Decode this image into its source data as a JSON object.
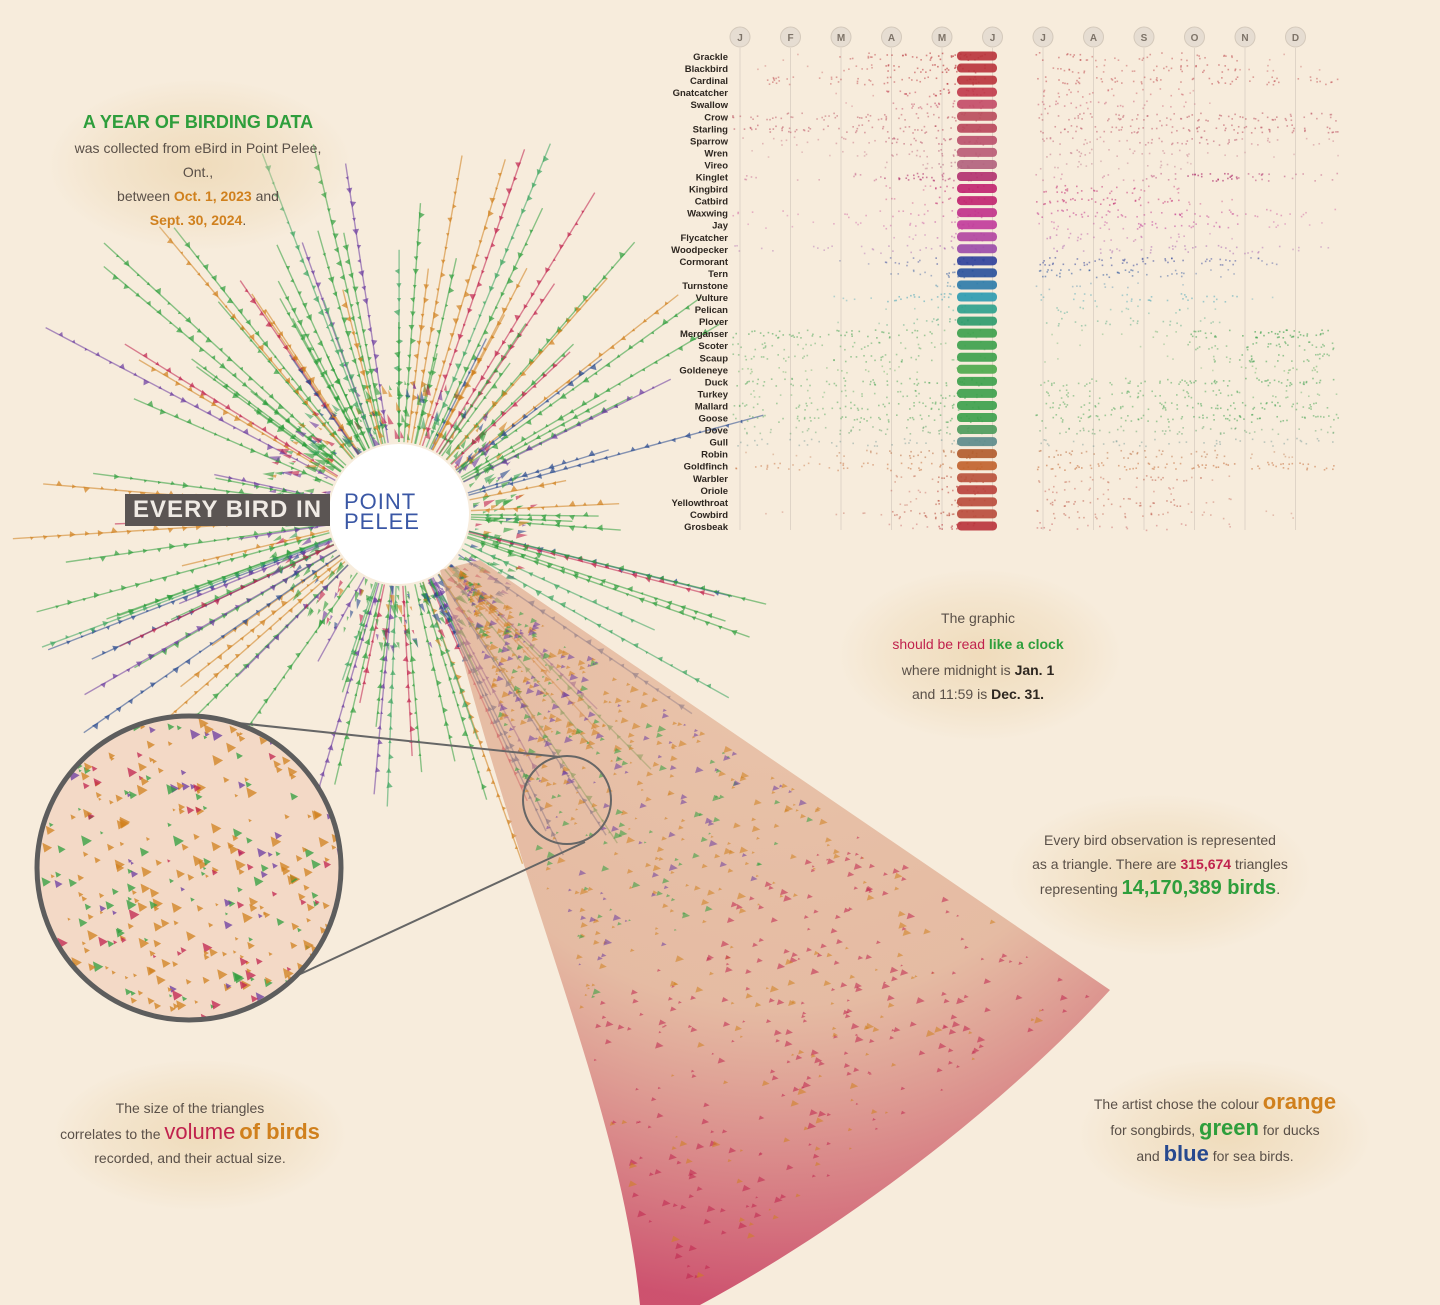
{
  "intro": {
    "heading": "A YEAR OF BIRDING DATA",
    "line1": "was collected from eBird in Point Pelee, Ont.,",
    "line2_pre": "between ",
    "date_start": "Oct. 1, 2023",
    "line2_post": " and",
    "date_end": "Sept. 30, 2024",
    "period": "."
  },
  "title": {
    "banner": "EVERY BIRD IN",
    "place_line1": "POINT",
    "place_line2": "PELEE"
  },
  "clock_note": {
    "line1": "The graphic",
    "emph1": "should be read",
    "emph2": "like a clock",
    "line3_pre": "where midnight is ",
    "jan": "Jan. 1",
    "line4_pre": "and 11:59 is ",
    "dec": "Dec. 31."
  },
  "triangle_note": {
    "line1": "Every bird observation is represented",
    "line2_pre": "as a triangle. There are ",
    "triangles": "315,674",
    "line2_post": " triangles",
    "line3_pre": "representing ",
    "birds": "14,170,389 birds",
    "period": "."
  },
  "size_note": {
    "line1": "The size of the triangles",
    "line2_pre": "correlates to the ",
    "volume": "volume",
    "of_birds": "of birds",
    "line3": "recorded, and their actual size."
  },
  "colour_note": {
    "line1_pre": "The artist chose the colour ",
    "orange": "orange",
    "line2_pre": "for songbirds, ",
    "green": "green",
    "line2_post": " for ducks",
    "line3_pre": "and ",
    "blue": "blue",
    "line3_post": " for sea birds."
  },
  "colors": {
    "background": "#f7ecdc",
    "songbird_orange": "#d0801d",
    "duck_green": "#2e9e3c",
    "seabird_blue": "#27498f",
    "crimson": "#c0224d"
  },
  "chart_data": [
    {
      "type": "heatmap",
      "title": "",
      "x_ticks": [
        "J",
        "F",
        "M",
        "A",
        "M",
        "J",
        "J",
        "A",
        "S",
        "O",
        "N",
        "D"
      ],
      "species": [
        {
          "name": "Grackle",
          "color": "#b8323a",
          "months": [
            0,
            0.1,
            0.4,
            0.6,
            0.8,
            1,
            0.5,
            0.3,
            0.4,
            0.4,
            0.1,
            0
          ]
        },
        {
          "name": "Blackbird",
          "color": "#b8323a",
          "months": [
            0.1,
            0.1,
            0.3,
            0.6,
            0.8,
            1,
            0.4,
            0.3,
            0.4,
            0.5,
            0.2,
            0.1
          ]
        },
        {
          "name": "Cardinal",
          "color": "#b8323a",
          "months": [
            0.4,
            0.3,
            0.4,
            0.5,
            0.7,
            1,
            0.5,
            0.4,
            0.4,
            0.5,
            0.4,
            0.4
          ]
        },
        {
          "name": "Gnatcatcher",
          "color": "#c0394a",
          "months": [
            0,
            0,
            0.1,
            0.5,
            0.8,
            1,
            0.4,
            0.3,
            0.3,
            0.1,
            0,
            0
          ]
        },
        {
          "name": "Swallow",
          "color": "#c24a66",
          "months": [
            0,
            0,
            0.1,
            0.5,
            0.7,
            1,
            0.5,
            0.4,
            0.3,
            0.1,
            0,
            0
          ]
        },
        {
          "name": "Crow",
          "color": "#b84a5a",
          "months": [
            0.5,
            0.4,
            0.5,
            0.5,
            0.6,
            1,
            0.5,
            0.5,
            0.5,
            0.6,
            0.6,
            0.5
          ]
        },
        {
          "name": "Starling",
          "color": "#b8465a",
          "months": [
            0.6,
            0.5,
            0.5,
            0.5,
            0.6,
            1,
            0.5,
            0.5,
            0.5,
            0.6,
            0.6,
            0.6
          ]
        },
        {
          "name": "Sparrow",
          "color": "#b9506a",
          "months": [
            0.2,
            0.2,
            0.3,
            0.6,
            0.7,
            1,
            0.4,
            0.3,
            0.5,
            0.6,
            0.3,
            0.2
          ]
        },
        {
          "name": "Wren",
          "color": "#b85a74",
          "months": [
            0.1,
            0.1,
            0.2,
            0.4,
            0.6,
            1,
            0.4,
            0.3,
            0.3,
            0.2,
            0.1,
            0.1
          ]
        },
        {
          "name": "Vireo",
          "color": "#b0607c",
          "months": [
            0,
            0,
            0,
            0.3,
            0.6,
            1,
            0.3,
            0.2,
            0.3,
            0.1,
            0,
            0
          ]
        },
        {
          "name": "Kinglet",
          "color": "#b0306e",
          "months": [
            0.2,
            0.1,
            0.3,
            0.8,
            0.6,
            1,
            0.2,
            0.2,
            0.4,
            0.9,
            0.5,
            0.3
          ]
        },
        {
          "name": "Kingbird",
          "color": "#c0226e",
          "months": [
            0,
            0,
            0,
            0.2,
            0.6,
            1,
            0.6,
            0.5,
            0.3,
            0,
            0,
            0
          ]
        },
        {
          "name": "Catbird",
          "color": "#c0226e",
          "months": [
            0,
            0,
            0,
            0.2,
            0.6,
            1,
            0.6,
            0.6,
            0.5,
            0.2,
            0,
            0
          ]
        },
        {
          "name": "Waxwing",
          "color": "#c0308a",
          "months": [
            0.2,
            0.1,
            0.2,
            0.3,
            0.5,
            1,
            0.6,
            0.5,
            0.5,
            0.4,
            0.3,
            0.2
          ]
        },
        {
          "name": "Jay",
          "color": "#c03a9a",
          "months": [
            0.1,
            0.1,
            0.2,
            0.3,
            0.5,
            1,
            0.3,
            0.3,
            0.6,
            0.5,
            0.2,
            0.1
          ]
        },
        {
          "name": "Flycatcher",
          "color": "#b044a0",
          "months": [
            0,
            0,
            0,
            0.2,
            0.5,
            1,
            0.4,
            0.3,
            0.3,
            0.1,
            0,
            0
          ]
        },
        {
          "name": "Woodpecker",
          "color": "#9a4aa8",
          "months": [
            0.2,
            0.2,
            0.2,
            0.3,
            0.4,
            1,
            0.3,
            0.3,
            0.4,
            0.4,
            0.3,
            0.2
          ]
        },
        {
          "name": "Cormorant",
          "color": "#2c3f9a",
          "months": [
            0,
            0,
            0.1,
            0.4,
            0.6,
            1,
            0.6,
            0.6,
            0.6,
            0.5,
            0.3,
            0
          ]
        },
        {
          "name": "Tern",
          "color": "#27509b",
          "months": [
            0,
            0,
            0,
            0.3,
            0.6,
            1,
            0.6,
            0.6,
            0.4,
            0.2,
            0,
            0
          ]
        },
        {
          "name": "Turnstone",
          "color": "#2a7aa8",
          "months": [
            0,
            0,
            0,
            0,
            0.4,
            1,
            0.2,
            0.2,
            0.1,
            0,
            0,
            0
          ]
        },
        {
          "name": "Vulture",
          "color": "#2a9ab0",
          "months": [
            0,
            0,
            0.2,
            0.5,
            0.5,
            1,
            0.3,
            0.3,
            0.4,
            0.4,
            0.1,
            0
          ]
        },
        {
          "name": "Pelican",
          "color": "#2aa08c",
          "months": [
            0,
            0,
            0,
            0.1,
            0.3,
            1,
            0.3,
            0.2,
            0.2,
            0.1,
            0,
            0
          ]
        },
        {
          "name": "Plover",
          "color": "#2a9a6a",
          "months": [
            0,
            0,
            0.1,
            0.3,
            0.5,
            1,
            0.3,
            0.3,
            0.3,
            0.2,
            0,
            0
          ]
        },
        {
          "name": "Merganser",
          "color": "#3aa04a",
          "months": [
            0.6,
            0.5,
            0.6,
            0.5,
            0.3,
            1,
            0.1,
            0.1,
            0.2,
            0.6,
            0.8,
            0.7
          ]
        },
        {
          "name": "Scoter",
          "color": "#3aa04a",
          "months": [
            0.4,
            0.3,
            0.4,
            0.3,
            0.2,
            1,
            0.1,
            0,
            0.1,
            0.4,
            0.6,
            0.5
          ]
        },
        {
          "name": "Scaup",
          "color": "#3aa04a",
          "months": [
            0.4,
            0.3,
            0.5,
            0.4,
            0.2,
            1,
            0.1,
            0,
            0.1,
            0.3,
            0.6,
            0.5
          ]
        },
        {
          "name": "Goldeneye",
          "color": "#4aa84a",
          "months": [
            0.3,
            0.2,
            0.3,
            0.2,
            0.1,
            0.2,
            0,
            0,
            0,
            0.1,
            0.3,
            0.4
          ]
        },
        {
          "name": "Duck",
          "color": "#3aa04a",
          "months": [
            0.5,
            0.4,
            0.5,
            0.5,
            0.6,
            1,
            0.4,
            0.4,
            0.5,
            0.6,
            0.6,
            0.6
          ]
        },
        {
          "name": "Turkey",
          "color": "#3aa04a",
          "months": [
            0.2,
            0.2,
            0.3,
            0.4,
            0.5,
            1,
            0.4,
            0.4,
            0.5,
            0.5,
            0.3,
            0.2
          ]
        },
        {
          "name": "Mallard",
          "color": "#3aa04a",
          "months": [
            0.4,
            0.4,
            0.5,
            0.5,
            0.6,
            1,
            0.5,
            0.5,
            0.5,
            0.6,
            0.6,
            0.5
          ]
        },
        {
          "name": "Goose",
          "color": "#3aa04a",
          "months": [
            0.4,
            0.4,
            0.5,
            0.5,
            0.6,
            1,
            0.5,
            0.5,
            0.5,
            0.6,
            0.6,
            0.5
          ]
        },
        {
          "name": "Dove",
          "color": "#4a9a5a",
          "months": [
            0.3,
            0.3,
            0.4,
            0.4,
            0.5,
            1,
            0.4,
            0.4,
            0.4,
            0.4,
            0.3,
            0.3
          ]
        },
        {
          "name": "Gull",
          "color": "#5a8a8a",
          "months": [
            0.3,
            0.3,
            0.3,
            0.3,
            0.4,
            1,
            0.3,
            0.3,
            0.3,
            0.3,
            0.3,
            0.3
          ]
        },
        {
          "name": "Robin",
          "color": "#b05a2a",
          "months": [
            0.1,
            0.1,
            0.3,
            0.5,
            0.6,
            1,
            0.5,
            0.4,
            0.4,
            0.4,
            0.2,
            0.1
          ]
        },
        {
          "name": "Goldfinch",
          "color": "#c0602a",
          "months": [
            0.4,
            0.3,
            0.4,
            0.5,
            0.6,
            1,
            0.6,
            0.5,
            0.5,
            0.6,
            0.5,
            0.5
          ]
        },
        {
          "name": "Warbler",
          "color": "#b8503a",
          "months": [
            0,
            0,
            0,
            0.3,
            0.7,
            1,
            0.3,
            0.3,
            0.5,
            0.2,
            0,
            0
          ]
        },
        {
          "name": "Oriole",
          "color": "#b8403a",
          "months": [
            0,
            0,
            0,
            0.2,
            0.6,
            1,
            0.3,
            0.2,
            0.2,
            0,
            0,
            0
          ]
        },
        {
          "name": "Yellowthroat",
          "color": "#b84a3a",
          "months": [
            0,
            0,
            0,
            0.2,
            0.6,
            1,
            0.5,
            0.4,
            0.5,
            0.2,
            0,
            0
          ]
        },
        {
          "name": "Cowbird",
          "color": "#b84a3a",
          "months": [
            0.1,
            0,
            0.2,
            0.5,
            0.7,
            1,
            0.4,
            0.3,
            0.3,
            0.2,
            0.1,
            0.1
          ]
        },
        {
          "name": "Grosbeak",
          "color": "#b8323a",
          "months": [
            0,
            0,
            0,
            0.2,
            0.6,
            1,
            0.3,
            0.2,
            0.2,
            0.1,
            0,
            0
          ]
        }
      ]
    },
    {
      "type": "radial-spray",
      "title": "",
      "groups": [
        {
          "name": "songbirds",
          "color": "#d0801d"
        },
        {
          "name": "ducks",
          "color": "#2e9e3c"
        },
        {
          "name": "sea birds",
          "color": "#27498f"
        }
      ]
    }
  ]
}
